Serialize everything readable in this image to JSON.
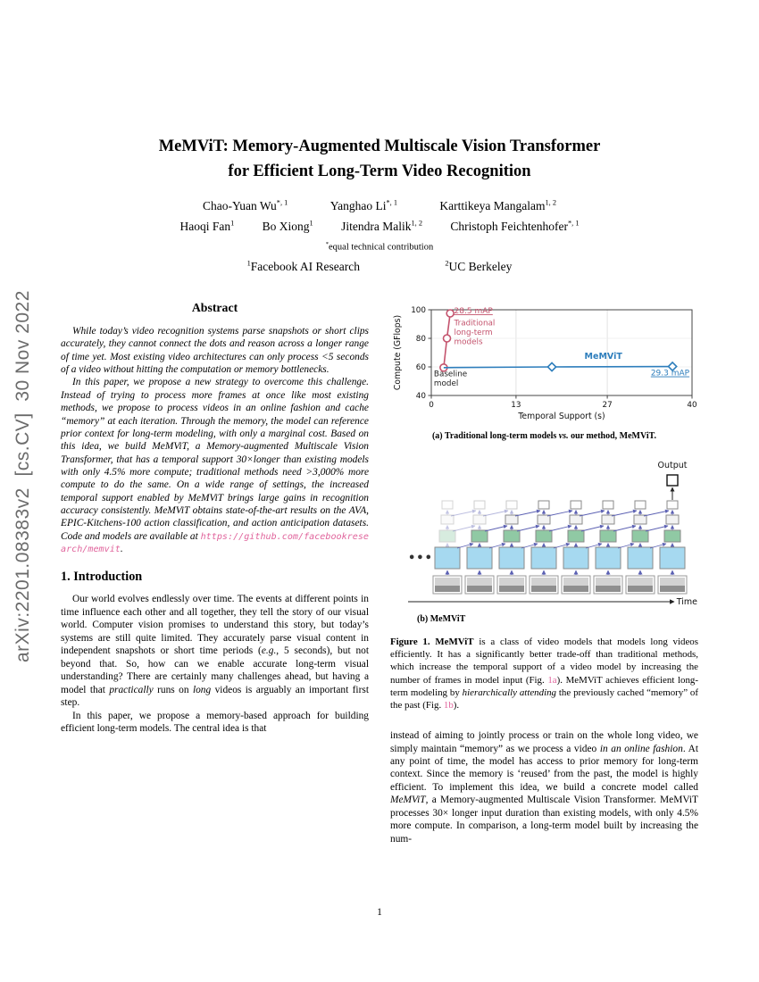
{
  "arxiv_banner": "arXiv:2201.08383v2  [cs.CV]  30 Nov 2022",
  "page_number": "1",
  "colors": {
    "link_pink": "#e0649c",
    "red_series": "#c4536d",
    "blue_series": "#2e7ebc"
  },
  "title": {
    "line1": "MeMViT: Memory-Augmented Multiscale Vision Transformer",
    "line2": "for Efficient Long-Term Video Recognition"
  },
  "authors": {
    "row1": [
      {
        "name": "Chao-Yuan Wu",
        "sup": "*, 1"
      },
      {
        "name": "Yanghao Li",
        "sup": "*, 1"
      },
      {
        "name": "Karttikeya Mangalam",
        "sup": "1, 2"
      }
    ],
    "row2": [
      {
        "name": "Haoqi Fan",
        "sup": "1"
      },
      {
        "name": "Bo Xiong",
        "sup": "1"
      },
      {
        "name": "Jitendra Malik",
        "sup": "1, 2"
      },
      {
        "name": "Christoph Feichtenhofer",
        "sup": "*, 1"
      }
    ],
    "footnote_sym": "*",
    "footnote": "equal technical contribution",
    "affil1_sup": "1",
    "affil1": "Facebook AI Research",
    "affil2_sup": "2",
    "affil2": "UC Berkeley"
  },
  "abstract": {
    "heading": "Abstract",
    "p1": "While today’s video recognition systems parse snapshots or short clips accurately, they cannot connect the dots and reason across a longer range of time yet. Most existing video architectures can only process <5 seconds of a video without hitting the computation or memory bottlenecks.",
    "p2_pre": "In this paper, we propose a new strategy to overcome this challenge. Instead of trying to process more frames at once like most existing methods, we propose to process videos in an online fashion and cache “memory” at each iteration. Through the memory, the model can reference prior context for long-term modeling, with only a marginal cost. Based on this idea, we build MeMViT, a Memory-augmented Multiscale Vision Transformer, that has a temporal support 30×longer than existing models with only 4.5% more compute; traditional methods need >3,000% more compute to do the same. On a wide range of settings, the increased temporal support enabled by MeMViT brings large gains in recognition accuracy consistently. MeMViT obtains state-of-the-art results on the AVA, EPIC-Kitchens-100 action classification, and action anticipation datasets. Code and models are available at ",
    "p2_url": "https://github.com/facebookresearch/memvit",
    "p2_post": "."
  },
  "intro": {
    "heading": "1. Introduction",
    "p1": {
      "s0": "Our world evolves endlessly over time. The events at different points in time influence each other and all together, they tell the story of our visual world. Computer vision promises to understand this story, but today’s systems are still quite limited. They accurately parse visual content in independent snapshots or short time periods (",
      "s1": "e.g.",
      "s2": ", 5 seconds), but not beyond that. So, how can we enable accurate long-term visual understanding? There are certainly many challenges ahead, but having a model that ",
      "s3": "practically",
      "s4": " runs on ",
      "s5": "long",
      "s6": " videos is arguably an important first step."
    },
    "p2": "In this paper, we propose a memory-based approach for building efficient long-term models. The central idea is that"
  },
  "right_col": {
    "p1": {
      "s0": "instead of aiming to jointly process or train on the whole long video, we simply maintain “memory” as we process a video ",
      "s1": "in an online fashion",
      "s2": ". At any point of time, the model has access to prior memory for long-term context. Since the memory is ‘reused’ from the past, the model is highly efficient. To implement this idea, we build a concrete model called ",
      "s3": "MeMViT",
      "s4": ", a Memory-augmented Multiscale Vision Transformer. MeMViT processes 30× longer input duration than existing models, with only 4.5% more compute. In comparison, a long-term model built by increasing the num-"
    }
  },
  "figure1": {
    "cap_a": {
      "s0": "(a) Traditional long-term models ",
      "s1": "vs.",
      "s2": " our method, MeMViT."
    },
    "cap_b": "(b) MeMViT",
    "caption": {
      "s0": "Figure 1. MeMViT",
      "s1": " is a class of video models that models long videos efficiently. It has a significantly better trade-off than traditional methods, which increase the temporal support of a video model by increasing the number of frames in model input (Fig. ",
      "link1": "1a",
      "s2": "). MeMViT achieves efficient long-term modeling by ",
      "s3": "hierarchically attending",
      "s4": " the previously cached “memory” of the past (Fig. ",
      "link2": "1b",
      "s5": ")."
    }
  },
  "chart_data": {
    "type": "line",
    "title": "",
    "xlabel": "Temporal Support (s)",
    "ylabel": "Compute (GFlops)",
    "xlim": [
      0,
      40
    ],
    "ylim": [
      40,
      100
    ],
    "xticks": [
      0,
      13,
      27,
      40
    ],
    "yticks": [
      40,
      60,
      80,
      100
    ],
    "grid": "light",
    "legend_position": "none",
    "series": [
      {
        "name": "Traditional long-term models",
        "color": "#c4536d",
        "marker": "circle",
        "marker_at": [
          0,
          1,
          2
        ],
        "x": [
          1.9,
          2.4,
          2.9
        ],
        "y": [
          59.5,
          80,
          97.5
        ],
        "map_label": "28.5 mAP"
      },
      {
        "name": "MeMViT",
        "color": "#2e7ebc",
        "marker": "diamond",
        "marker_at": [
          1,
          2
        ],
        "x": [
          1.9,
          18.5,
          37
        ],
        "y": [
          59.5,
          60,
          60.3
        ],
        "map_label": "29.3 mAP"
      }
    ],
    "annotations": [
      {
        "text": "28.5 mAP",
        "x": 3.5,
        "y": 97.5,
        "color": "#c4536d",
        "underline": true,
        "anchor": "start",
        "size": 9
      },
      {
        "lines": [
          "Traditional",
          "long-term",
          "models"
        ],
        "x": 3.5,
        "y": 89,
        "color": "#c4536d",
        "size": 8.8
      },
      {
        "text": "MeMViT",
        "x": 23.5,
        "y": 65.5,
        "color": "#2e7ebc",
        "bold": true,
        "size": 9.5
      },
      {
        "text": "29.3 mAP",
        "x": 39.6,
        "y": 54,
        "color": "#2e7ebc",
        "underline": true,
        "anchor": "end",
        "size": 9
      },
      {
        "lines": [
          "Baseline",
          "model"
        ],
        "x": 0.4,
        "y": 53.5,
        "color": "#222222",
        "size": 8.8
      }
    ]
  },
  "architecture": {
    "dots_label": "•••",
    "output_label": "Output",
    "time_label": "Time",
    "columns": 8,
    "colors": {
      "frame_fill": "#d2d2d2",
      "frame_inner": "#8f8f8f",
      "frame_stroke": "#9a9a9a",
      "block_l1": "#a6d9f0",
      "block_l2": "#90c9a4",
      "block_l3": "#f2f2f2",
      "block_l4": "#fdfdfd",
      "block_stroke": "#8a8a8a",
      "arrow": "#5c61b3",
      "output_stroke": "#111111"
    }
  }
}
